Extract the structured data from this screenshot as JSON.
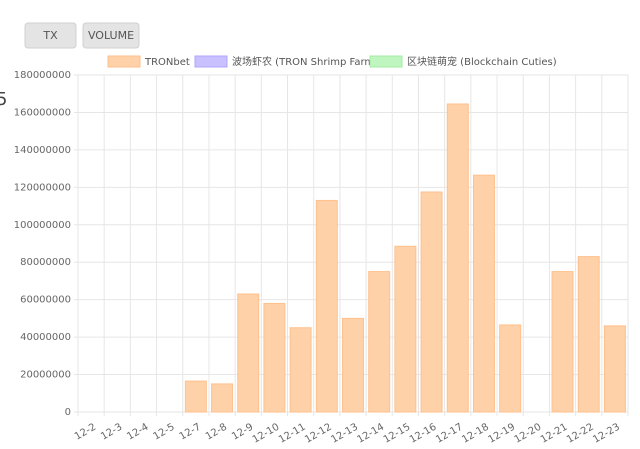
{
  "buttons": [
    "TX",
    "VOLUME"
  ],
  "side_label": "5",
  "chart_data": {
    "type": "bar",
    "categories": [
      "12-2",
      "12-3",
      "12-4",
      "12-5",
      "12-7",
      "12-8",
      "12-9",
      "12-10",
      "12-11",
      "12-12",
      "12-13",
      "12-14",
      "12-15",
      "12-16",
      "12-17",
      "12-18",
      "12-19",
      "12-20",
      "12-21",
      "12-22",
      "12-23"
    ],
    "series": [
      {
        "name": "TRONbet",
        "color": "#ffd1a8",
        "border": "#ffc08c",
        "values": [
          0,
          0,
          0,
          0,
          16500000,
          15000000,
          63000000,
          58000000,
          45000000,
          113000000,
          50000000,
          75000000,
          88500000,
          117500000,
          164500000,
          126500000,
          46500000,
          0,
          75000000,
          83000000,
          46000000
        ]
      },
      {
        "name": "波场虾农 (TRON Shrimp Farm)",
        "color": "#c8c0ff",
        "border": "#b0a6ff",
        "values": [
          null,
          null,
          null,
          null,
          null,
          null,
          null,
          null,
          null,
          null,
          null,
          null,
          null,
          null,
          null,
          null,
          null,
          null,
          null,
          null,
          null
        ]
      },
      {
        "name": "区块链萌宠 (Blockchain Cuties)",
        "color": "#bff5bf",
        "border": "#a4eca4",
        "values": [
          null,
          null,
          null,
          null,
          null,
          null,
          null,
          null,
          null,
          null,
          null,
          null,
          null,
          null,
          null,
          null,
          null,
          null,
          null,
          null,
          null
        ]
      }
    ],
    "ylim": [
      0,
      180000000
    ],
    "yticks": [
      0,
      20000000,
      40000000,
      60000000,
      80000000,
      100000000,
      120000000,
      140000000,
      160000000,
      180000000
    ],
    "grid": true
  }
}
